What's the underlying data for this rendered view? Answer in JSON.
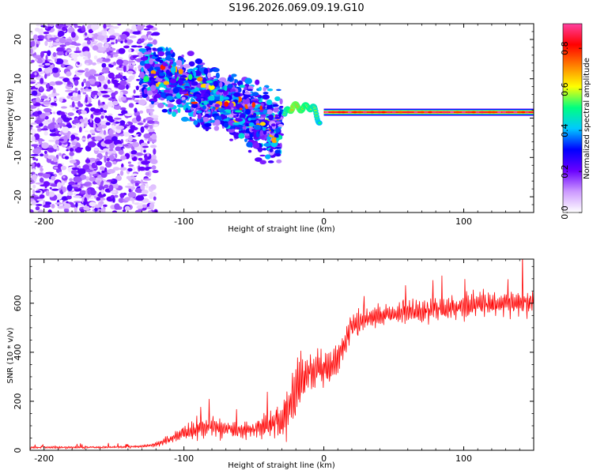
{
  "title": "S196.2026.069.09.19.G10",
  "chart_data": [
    {
      "type": "heatmap",
      "xlabel": "Height of straight line (km)",
      "ylabel": "Frequency (Hz)",
      "xlim": [
        -210,
        150
      ],
      "ylim": [
        -24,
        24
      ],
      "xticks": [
        -200,
        -100,
        0,
        100
      ],
      "xtick_labels": [
        "-200",
        "-100",
        "0",
        "100"
      ],
      "yticks": [
        -20,
        -10,
        0,
        10,
        20
      ],
      "ytick_labels": [
        "-20",
        "-10",
        "0",
        "10",
        "20"
      ],
      "colorbar": {
        "label": "Normalized spectral amplitude",
        "range": [
          0.0,
          0.92
        ],
        "ticks": [
          0.0,
          0.2,
          0.4,
          0.6,
          0.8
        ],
        "tick_labels": [
          "0.0",
          "0.2",
          "0.4",
          "0.6",
          "0.8"
        ],
        "colormap": [
          "#ffffff",
          "#cc99ff",
          "#6a00ff",
          "#0000ff",
          "#00c8ff",
          "#00ff80",
          "#ffff00",
          "#ff8000",
          "#ff0000",
          "#ff40a0"
        ]
      },
      "features": {
        "stable_line": {
          "x_start": 0,
          "x_end": 150,
          "frequency": 1.5,
          "amplitude": 0.85
        },
        "transition_segments": [
          {
            "x": -28,
            "frequency": 1.0,
            "amplitude": 0.55
          },
          {
            "x": -22,
            "frequency": 3.0,
            "amplitude": 0.7
          },
          {
            "x": -15,
            "frequency": 2.5,
            "amplitude": 0.65
          },
          {
            "x": -8,
            "frequency": 3.0,
            "amplitude": 0.6
          },
          {
            "x": -3,
            "frequency": -1.0,
            "amplitude": 0.5
          }
        ],
        "noise_regions": [
          {
            "x_range": [
              -210,
              -120
            ],
            "freq_range": [
              -24,
              24
            ],
            "amplitude": 0.15
          },
          {
            "x_range": [
              -130,
              -30
            ],
            "freq_range_center": [
              13,
              -3
            ],
            "spread": [
              8,
              10
            ],
            "amplitude": 0.3
          }
        ]
      }
    },
    {
      "type": "line",
      "xlabel": "Height of straight line (km)",
      "ylabel": "SNR (10 * v/v)",
      "xlim": [
        -210,
        150
      ],
      "ylim": [
        0,
        780
      ],
      "xticks": [
        -200,
        -100,
        0,
        100
      ],
      "xtick_labels": [
        "-200",
        "-100",
        "0",
        "100"
      ],
      "yticks": [
        0,
        200,
        400,
        600
      ],
      "ytick_labels": [
        "0",
        "200",
        "400",
        "600"
      ],
      "color": "#ff0000",
      "series": [
        {
          "name": "SNR",
          "x": [
            -210,
            -200,
            -180,
            -160,
            -140,
            -130,
            -120,
            -110,
            -100,
            -90,
            -80,
            -70,
            -60,
            -50,
            -40,
            -30,
            -25,
            -20,
            -15,
            -10,
            -5,
            0,
            5,
            10,
            15,
            20,
            25,
            30,
            40,
            50,
            60,
            70,
            80,
            90,
            100,
            110,
            120,
            130,
            140,
            150
          ],
          "y": [
            12,
            12,
            12,
            12,
            14,
            16,
            25,
            45,
            70,
            90,
            95,
            90,
            80,
            85,
            100,
            120,
            180,
            240,
            280,
            320,
            330,
            330,
            340,
            380,
            440,
            500,
            520,
            540,
            550,
            560,
            565,
            570,
            575,
            580,
            590,
            595,
            595,
            600,
            600,
            600
          ],
          "noise_amplitude": [
            8,
            8,
            8,
            8,
            8,
            10,
            15,
            30,
            50,
            70,
            70,
            60,
            60,
            65,
            80,
            120,
            170,
            200,
            150,
            130,
            120,
            110,
            110,
            110,
            100,
            90,
            80,
            80,
            75,
            70,
            70,
            75,
            80,
            85,
            90,
            90,
            85,
            80,
            80,
            80
          ]
        }
      ]
    }
  ]
}
